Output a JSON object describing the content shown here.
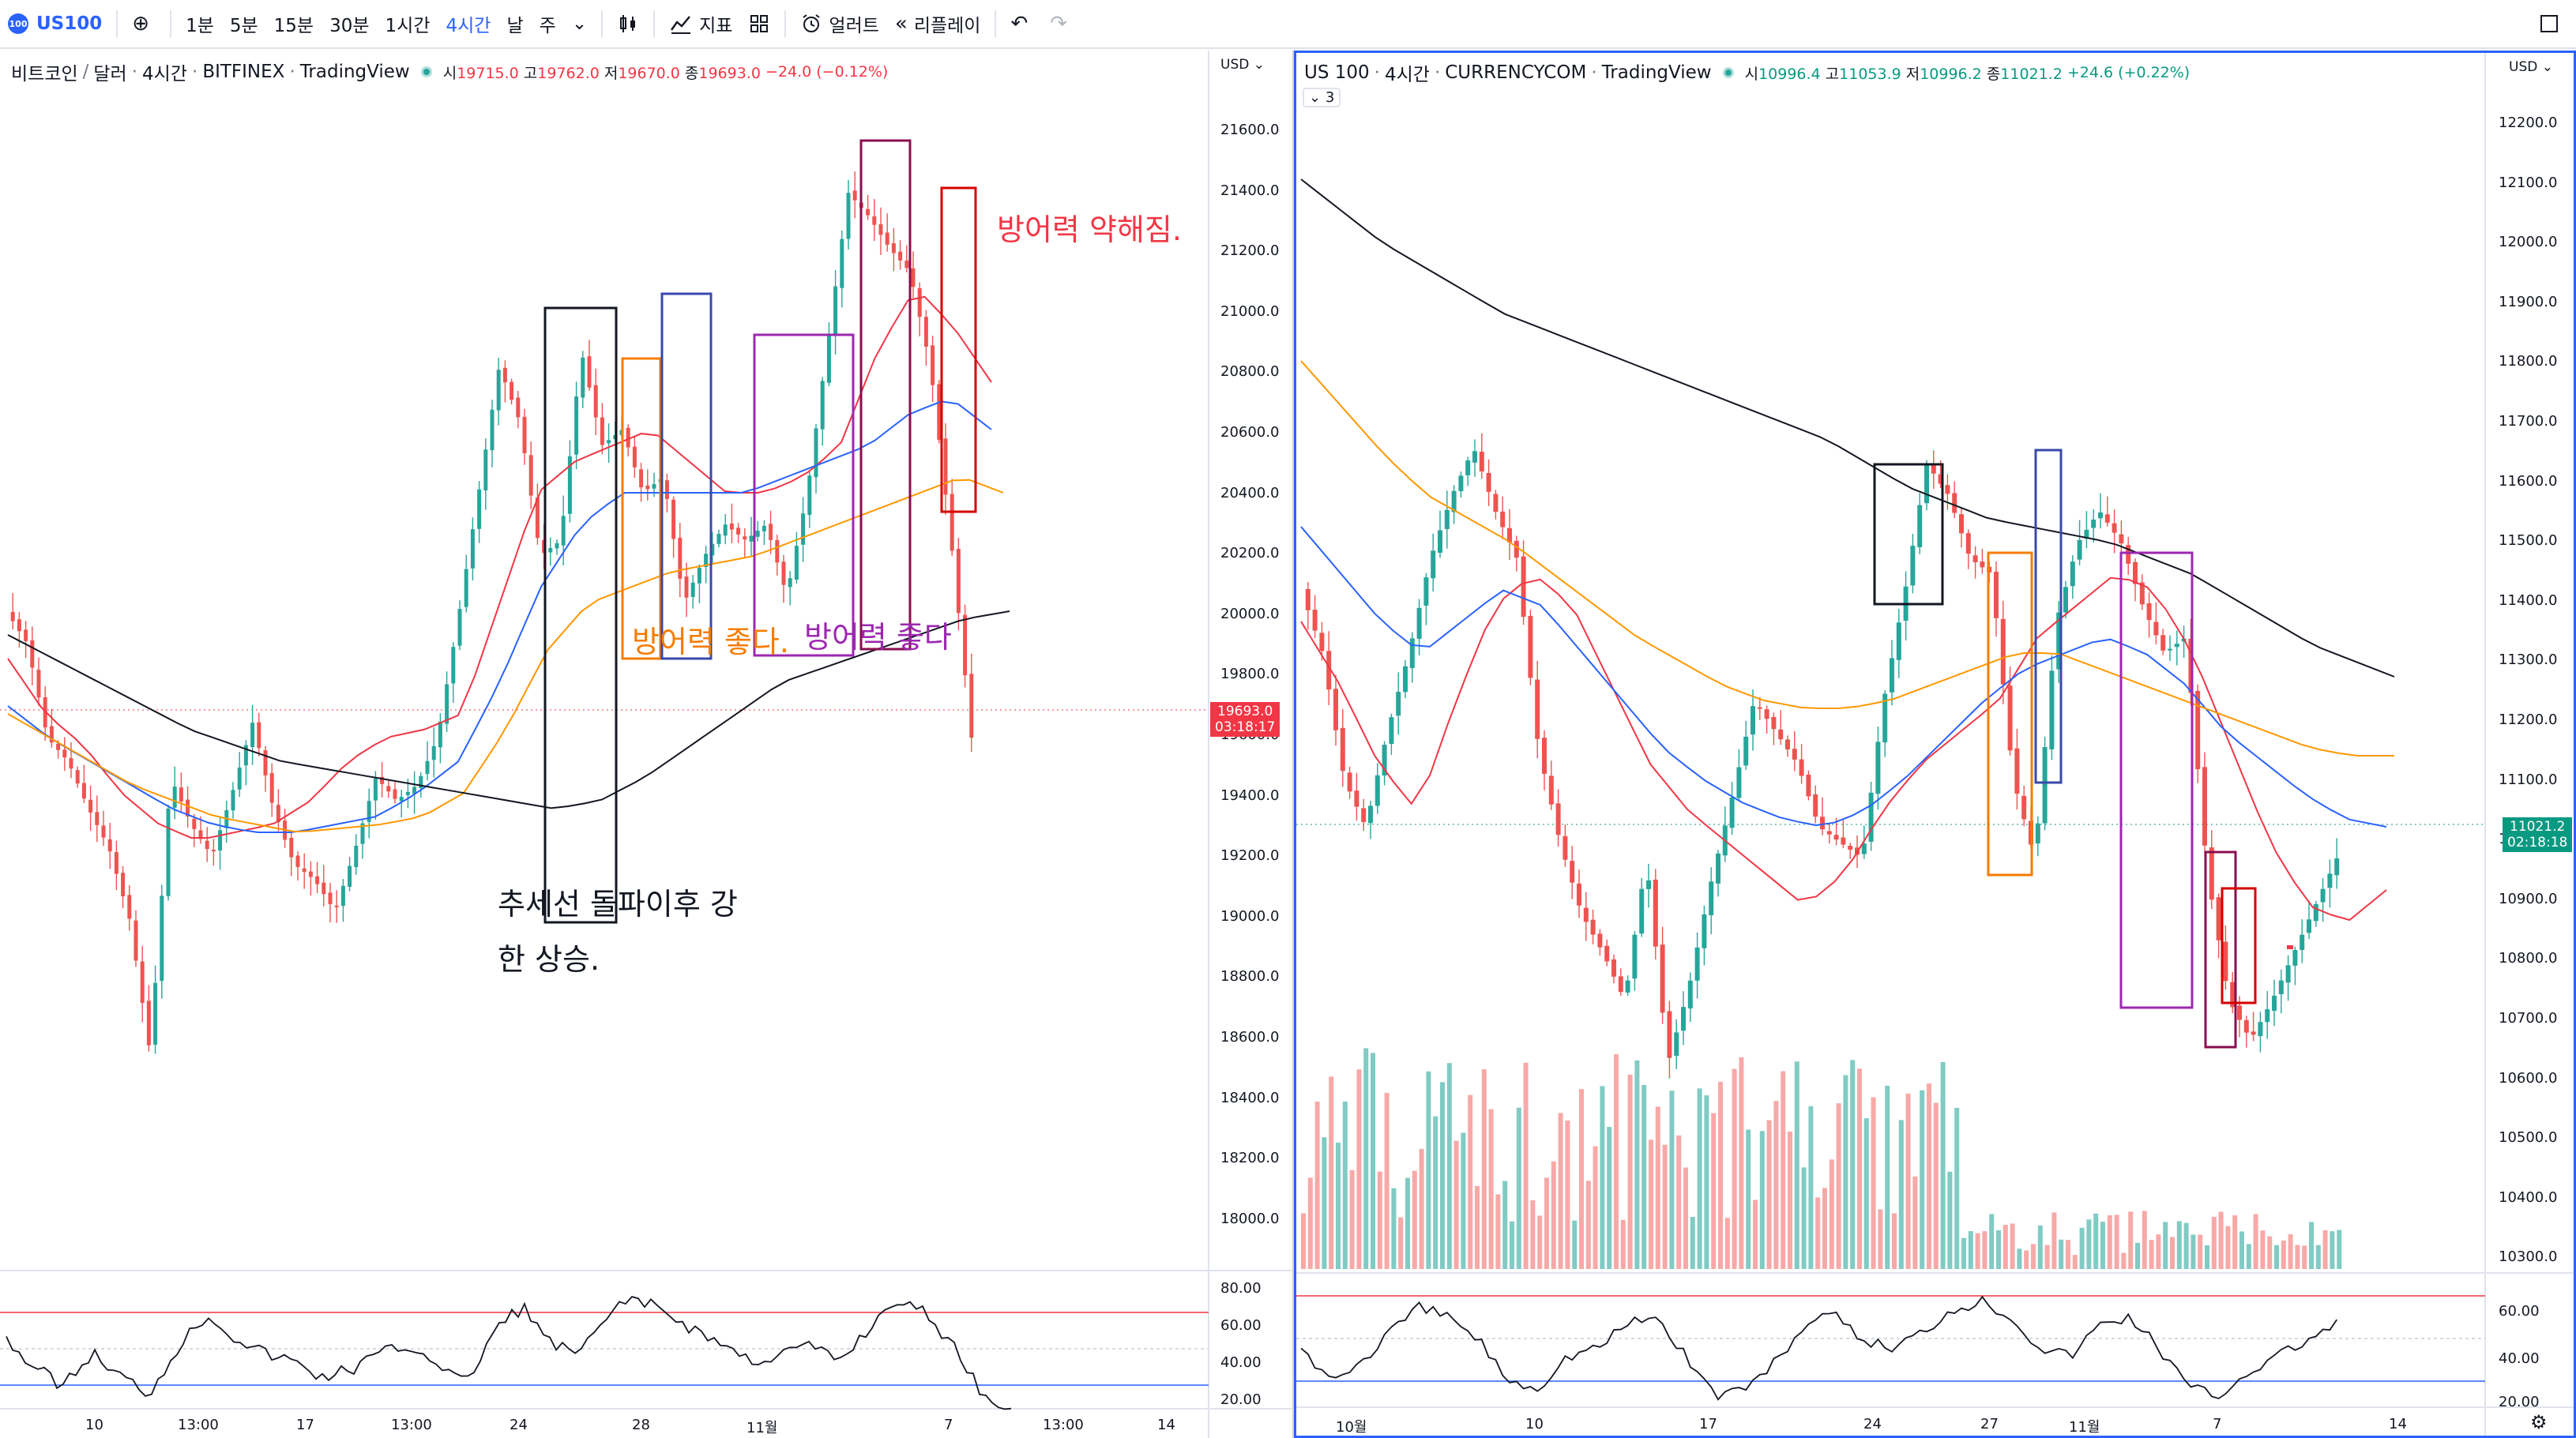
{
  "toolbar": {
    "symbol": "US100",
    "symbol_badge": "100",
    "add_icon": "plus-circle-icon",
    "intervals": [
      "1분",
      "5분",
      "15분",
      "30분",
      "1시간",
      "4시간",
      "날",
      "주"
    ],
    "active_interval": "4시간",
    "indicators_label": "지표",
    "alert_label": "얼러트",
    "replay_label": "리플레이"
  },
  "left_chart": {
    "title_parts": [
      "비트코인",
      "달러",
      "4시간",
      "BITFINEX",
      "TradingView"
    ],
    "ohlc": {
      "open_key": "시",
      "open": "19715.0",
      "high_key": "고",
      "high": "19762.0",
      "low_key": "저",
      "low": "19670.0",
      "close_key": "종",
      "close": "19693.0",
      "change": "−24.0 (−0.12%)"
    },
    "currency": "USD",
    "y_ticks": [
      "21600.0",
      "21400.0",
      "21200.0",
      "21000.0",
      "20800.0",
      "20600.0",
      "20400.0",
      "20200.0",
      "20000.0",
      "19800.0",
      "19600.0",
      "19400.0",
      "19200.0",
      "19000.0",
      "18800.0",
      "18600.0",
      "18400.0",
      "18200.0",
      "18000.0"
    ],
    "price_tag": "19693.0",
    "price_timer": "03:18:17",
    "rsi_ticks": [
      "80.00",
      "60.00",
      "40.00",
      "20.00"
    ],
    "x_ticks": [
      "10",
      "13:00",
      "17",
      "13:00",
      "24",
      "28",
      "11월",
      "7",
      "13:00",
      "14"
    ],
    "annotations": {
      "orange": "방어력 좋다.",
      "purple": "방어력 좋다",
      "red": "방어력 약해짐.",
      "black_1": "추세선 돌파이후 강",
      "black_2": "한 상승."
    },
    "colors": {
      "up": "#26a69a",
      "down": "#ef5350",
      "ma_fast": "#f23645",
      "ma_mid": "#2962ff",
      "ma_slow": "#ff9800",
      "ma_long": "#131722"
    }
  },
  "right_chart": {
    "title_parts": [
      "US 100",
      "4시간",
      "CURRENCYCOM",
      "TradingView"
    ],
    "ohlc": {
      "open_key": "시",
      "open": "10996.4",
      "high_key": "고",
      "high": "11053.9",
      "low_key": "저",
      "low": "10996.2",
      "close_key": "종",
      "close": "11021.2",
      "change": "+24.6 (+0.22%)"
    },
    "indicator_count": "3",
    "currency": "USD",
    "y_ticks": [
      "12200.0",
      "12100.0",
      "12000.0",
      "11900.0",
      "11800.0",
      "11700.0",
      "11600.0",
      "11500.0",
      "11400.0",
      "11300.0",
      "11200.0",
      "11100.0",
      "11000.0",
      "10900.0",
      "10800.0",
      "10700.0",
      "10600.0",
      "10500.0",
      "10400.0",
      "10300.0"
    ],
    "price_tag": "11021.2",
    "price_timer": "02:18:18",
    "rsi_ticks": [
      "60.00",
      "40.00",
      "20.00"
    ],
    "x_ticks": [
      "10월",
      "10",
      "17",
      "24",
      "27",
      "11월",
      "7",
      "14"
    ]
  }
}
